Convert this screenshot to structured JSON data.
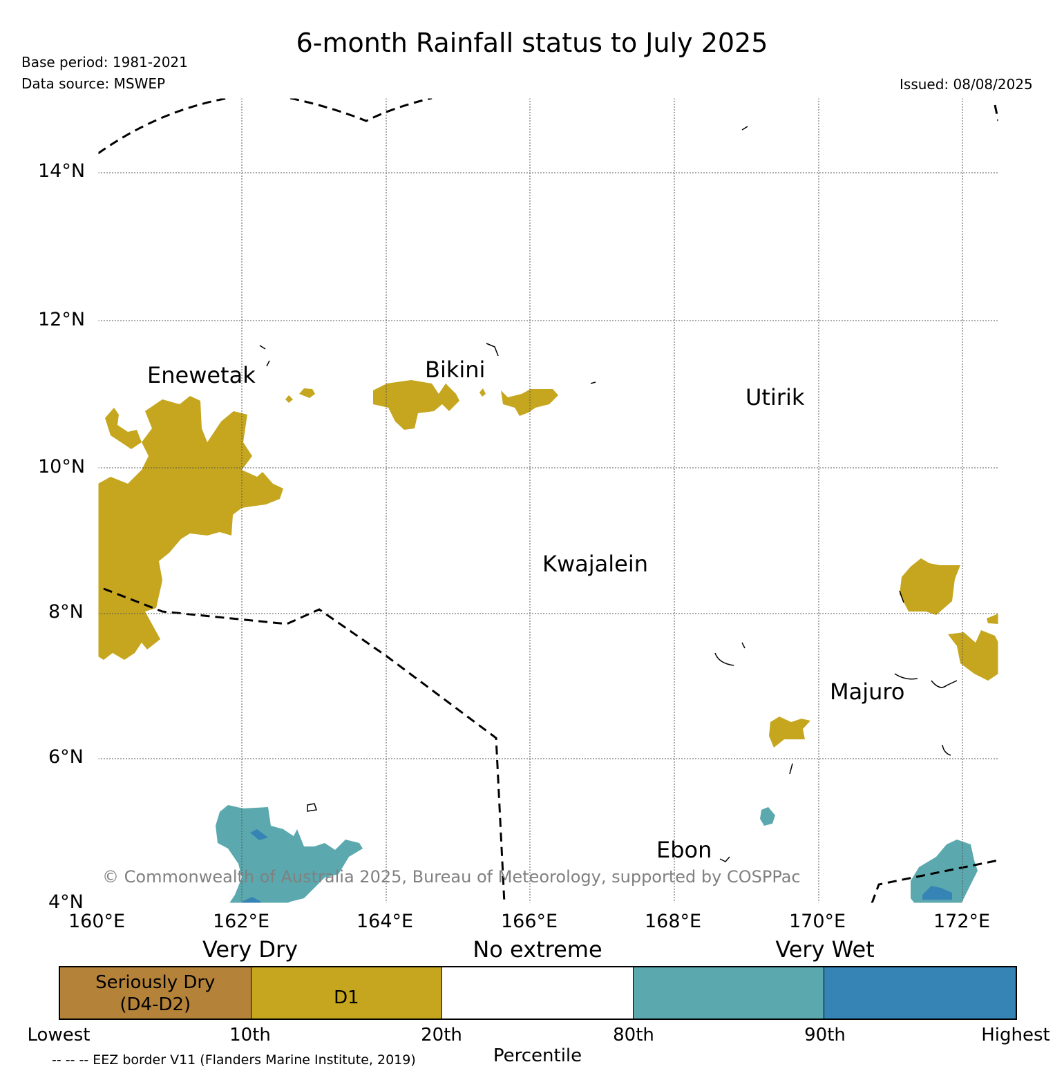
{
  "header": {
    "title": "6-month Rainfall status to July 2025",
    "base_period": "Base period: 1981-2021",
    "data_source": "Data source: MSWEP",
    "issued": "Issued: 08/08/2025"
  },
  "map": {
    "lon_ticks": [
      "160°E",
      "162°E",
      "164°E",
      "166°E",
      "168°E",
      "170°E",
      "172°E"
    ],
    "lat_ticks": [
      "14°N",
      "12°N",
      "10°N",
      "8°N",
      "6°N",
      "4°N"
    ],
    "places": {
      "enewetak": "Enewetak",
      "bikini": "Bikini",
      "utirik": "Utirik",
      "kwajalein": "Kwajalein",
      "majuro": "Majuro",
      "ebon": "Ebon"
    },
    "copyright": "© Commonwealth of Australia 2025, Bureau of Meteorology, supported by COSPPac",
    "colors": {
      "seriously_dry": "#b5823a",
      "d1": "#c5a61e",
      "no_extreme": "#ffffff",
      "very_wet": "#5ba9ae",
      "highest": "#3584b5",
      "grid": "#555555"
    }
  },
  "legend": {
    "categories": {
      "very_dry": "Very Dry",
      "no_extreme": "No extreme",
      "very_wet": "Very Wet"
    },
    "segments": {
      "seriously_dry": "Seriously Dry\n(D4-D2)",
      "d1": "D1"
    },
    "percentiles": {
      "lowest": "Lowest",
      "p10": "10th",
      "p20": "20th",
      "p80": "80th",
      "p90": "90th",
      "highest": "Highest"
    },
    "axis_label": "Percentile",
    "eez_note": "-- -- -- EEZ border V11 (Flanders Marine Institute, 2019)"
  }
}
